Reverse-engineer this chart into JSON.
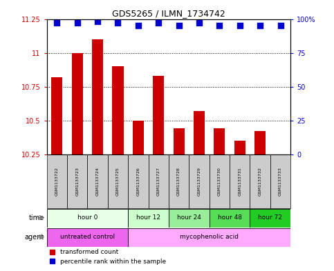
{
  "title": "GDS5265 / ILMN_1734742",
  "samples": [
    "GSM1133722",
    "GSM1133723",
    "GSM1133724",
    "GSM1133725",
    "GSM1133726",
    "GSM1133727",
    "GSM1133728",
    "GSM1133729",
    "GSM1133730",
    "GSM1133731",
    "GSM1133732",
    "GSM1133733"
  ],
  "bar_values": [
    10.82,
    11.0,
    11.1,
    10.9,
    10.5,
    10.83,
    10.44,
    10.57,
    10.44,
    10.35,
    10.42,
    10.25
  ],
  "bar_bottom": 10.25,
  "dot_values": [
    97,
    97,
    98,
    97,
    95,
    97,
    95,
    97,
    95,
    95,
    95,
    95
  ],
  "bar_color": "#cc0000",
  "dot_color": "#0000cc",
  "ylim_left": [
    10.25,
    11.25
  ],
  "ylim_right": [
    0,
    100
  ],
  "yticks_left": [
    10.25,
    10.5,
    10.75,
    11.0,
    11.25
  ],
  "yticks_right": [
    0,
    25,
    50,
    75,
    100
  ],
  "ytick_labels_left": [
    "10.25",
    "10.5",
    "10.75",
    "11",
    "11.25"
  ],
  "ytick_labels_right": [
    "0",
    "25",
    "50",
    "75",
    "100%"
  ],
  "time_groups": [
    {
      "label": "hour 0",
      "start": 0,
      "end": 4,
      "color": "#e8ffe8"
    },
    {
      "label": "hour 12",
      "start": 4,
      "end": 6,
      "color": "#ccffcc"
    },
    {
      "label": "hour 24",
      "start": 6,
      "end": 8,
      "color": "#99ee99"
    },
    {
      "label": "hour 48",
      "start": 8,
      "end": 10,
      "color": "#55dd55"
    },
    {
      "label": "hour 72",
      "start": 10,
      "end": 12,
      "color": "#22cc22"
    }
  ],
  "agent_groups": [
    {
      "label": "untreated control",
      "start": 0,
      "end": 4,
      "color": "#ee66ee"
    },
    {
      "label": "mycophenolic acid",
      "start": 4,
      "end": 12,
      "color": "#ffaaff"
    }
  ],
  "legend_items": [
    {
      "label": "transformed count",
      "color": "#cc0000"
    },
    {
      "label": "percentile rank within the sample",
      "color": "#0000cc"
    }
  ],
  "sample_box_color": "#cccccc",
  "bg_color": "#ffffff",
  "bar_width": 0.55,
  "dot_size": 28
}
